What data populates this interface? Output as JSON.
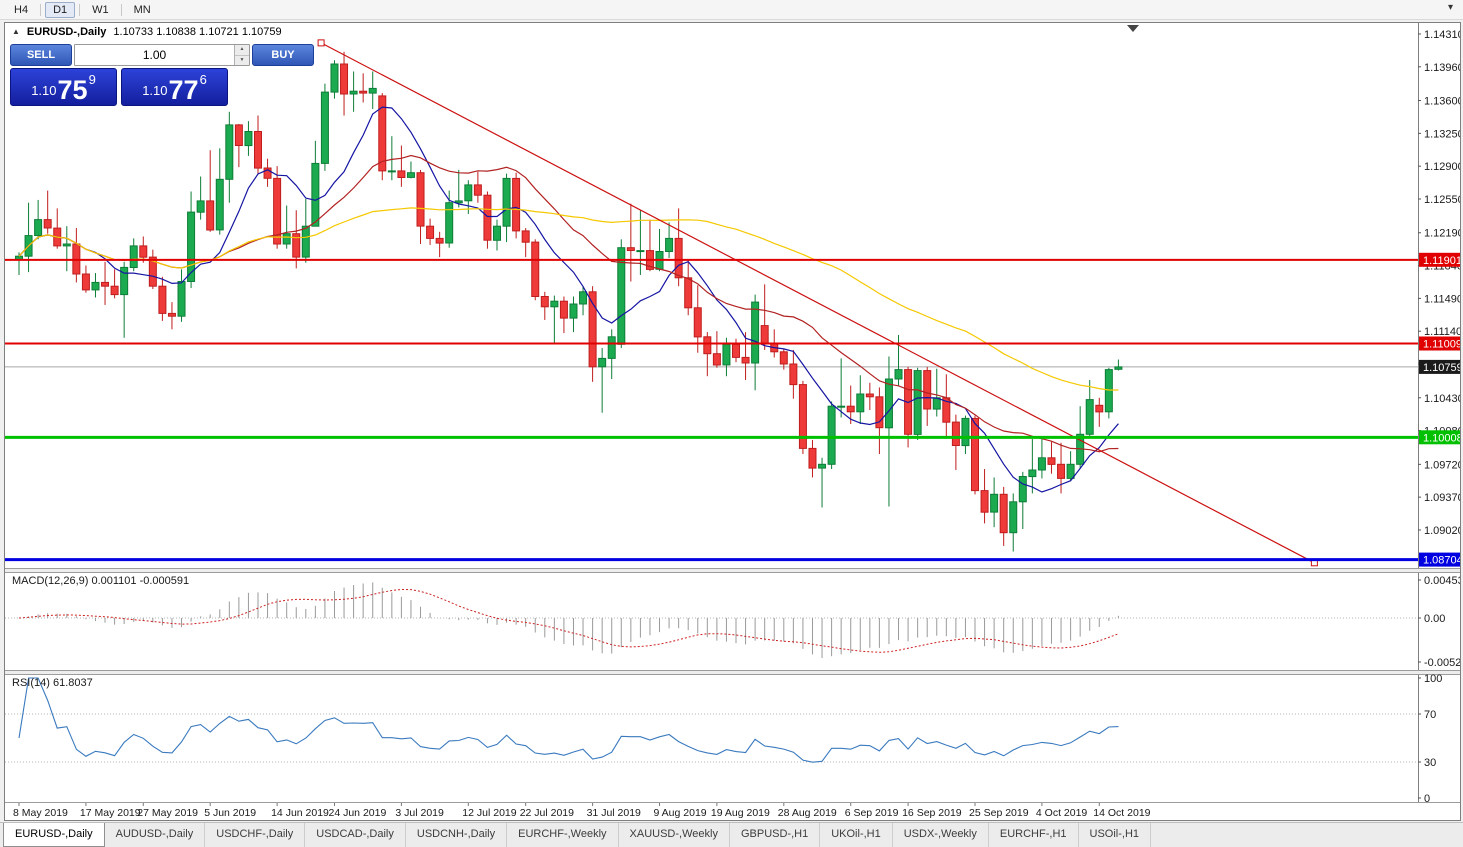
{
  "toolbar": {
    "items": [
      {
        "label": "H4",
        "active": false
      },
      {
        "label": "D1",
        "active": true
      },
      {
        "label": "W1",
        "active": false
      },
      {
        "label": "MN",
        "active": false
      }
    ],
    "overflow_icon": "▾"
  },
  "chart_header": {
    "expand_icon": "▲",
    "symbol": "EURUSD-,Daily",
    "ohlc": "1.10733 1.10838 1.10721 1.10759"
  },
  "one_click": {
    "sell_label": "SELL",
    "buy_label": "BUY",
    "volume": "1.00",
    "spinner_up_icon": "▲",
    "spinner_down_icon": "▼",
    "sell_price_small": "1.10",
    "sell_price_big": "75",
    "sell_price_sup": "9",
    "buy_price_small": "1.10",
    "buy_price_big": "77",
    "buy_price_sup": "6"
  },
  "chart_data": {
    "type": "candlestick",
    "symbol": "EURUSD",
    "timeframe": "Daily",
    "last_ohlc": {
      "open": "1.10733",
      "high": "1.10838",
      "low": "1.10721",
      "close": "1.10759"
    },
    "colors": {
      "bull": "#1caa50",
      "bull_edge": "#0d7d37",
      "bear": "#ef3a3a",
      "bear_edge": "#bf1d1d",
      "current_price_line": "#a8a8a8"
    },
    "candles": [
      [
        1.119,
        1.1198,
        1.1174,
        1.1194
      ],
      [
        1.1194,
        1.1251,
        1.1177,
        1.1216
      ],
      [
        1.1216,
        1.1254,
        1.1212,
        1.1233
      ],
      [
        1.1233,
        1.1264,
        1.1218,
        1.1224
      ],
      [
        1.1224,
        1.1245,
        1.1202,
        1.1205
      ],
      [
        1.1205,
        1.1226,
        1.1178,
        1.1207
      ],
      [
        1.1207,
        1.1224,
        1.1166,
        1.1175
      ],
      [
        1.1175,
        1.1184,
        1.1155,
        1.1158
      ],
      [
        1.1158,
        1.1176,
        1.115,
        1.1166
      ],
      [
        1.1166,
        1.1188,
        1.1142,
        1.1162
      ],
      [
        1.1162,
        1.118,
        1.1149,
        1.1153
      ],
      [
        1.1153,
        1.1188,
        1.1107,
        1.1182
      ],
      [
        1.1182,
        1.1213,
        1.1178,
        1.1205
      ],
      [
        1.1205,
        1.1215,
        1.1187,
        1.1193
      ],
      [
        1.1193,
        1.1201,
        1.1159,
        1.1162
      ],
      [
        1.1162,
        1.1172,
        1.1125,
        1.1133
      ],
      [
        1.1133,
        1.1145,
        1.1116,
        1.113
      ],
      [
        1.113,
        1.118,
        1.1124,
        1.1167
      ],
      [
        1.1167,
        1.1263,
        1.116,
        1.1241
      ],
      [
        1.1241,
        1.1279,
        1.1233,
        1.1253
      ],
      [
        1.1253,
        1.1307,
        1.122,
        1.1222
      ],
      [
        1.1222,
        1.1309,
        1.1217,
        1.1276
      ],
      [
        1.1276,
        1.1348,
        1.1251,
        1.1334
      ],
      [
        1.1334,
        1.1335,
        1.1289,
        1.1312
      ],
      [
        1.1312,
        1.1338,
        1.1301,
        1.1327
      ],
      [
        1.1327,
        1.1344,
        1.1282,
        1.1288
      ],
      [
        1.1288,
        1.1298,
        1.1268,
        1.1277
      ],
      [
        1.1277,
        1.129,
        1.1202,
        1.1207
      ],
      [
        1.1207,
        1.1248,
        1.1202,
        1.1218
      ],
      [
        1.1218,
        1.1243,
        1.1181,
        1.1193
      ],
      [
        1.1193,
        1.1255,
        1.1187,
        1.1226
      ],
      [
        1.1226,
        1.1317,
        1.1226,
        1.1293
      ],
      [
        1.1293,
        1.1378,
        1.1285,
        1.1369
      ],
      [
        1.1369,
        1.1403,
        1.1362,
        1.1399
      ],
      [
        1.1399,
        1.1412,
        1.1344,
        1.1367
      ],
      [
        1.1367,
        1.1391,
        1.1348,
        1.137
      ],
      [
        1.137,
        1.1389,
        1.1358,
        1.1368
      ],
      [
        1.1368,
        1.1391,
        1.1351,
        1.1373
      ],
      [
        1.1365,
        1.1368,
        1.1275,
        1.1285
      ],
      [
        1.1285,
        1.1322,
        1.1275,
        1.1285
      ],
      [
        1.1285,
        1.1312,
        1.1268,
        1.1278
      ],
      [
        1.1278,
        1.1295,
        1.1277,
        1.1283
      ],
      [
        1.1283,
        1.1286,
        1.1207,
        1.1226
      ],
      [
        1.1226,
        1.1234,
        1.1206,
        1.1213
      ],
      [
        1.1213,
        1.122,
        1.1193,
        1.1208
      ],
      [
        1.1208,
        1.1264,
        1.1203,
        1.1251
      ],
      [
        1.1251,
        1.1286,
        1.1246,
        1.1253
      ],
      [
        1.1253,
        1.1275,
        1.1239,
        1.127
      ],
      [
        1.127,
        1.1284,
        1.1251,
        1.1259
      ],
      [
        1.1259,
        1.1263,
        1.1202,
        1.1211
      ],
      [
        1.1211,
        1.1233,
        1.12,
        1.1226
      ],
      [
        1.1226,
        1.1282,
        1.1209,
        1.1277
      ],
      [
        1.1277,
        1.1283,
        1.1213,
        1.1221
      ],
      [
        1.1221,
        1.1224,
        1.1193,
        1.1209
      ],
      [
        1.1209,
        1.1212,
        1.1147,
        1.1151
      ],
      [
        1.1151,
        1.1156,
        1.1126,
        1.114
      ],
      [
        1.114,
        1.1152,
        1.1101,
        1.1146
      ],
      [
        1.1146,
        1.1151,
        1.1112,
        1.1128
      ],
      [
        1.1128,
        1.1151,
        1.1113,
        1.1143
      ],
      [
        1.1143,
        1.1162,
        1.1131,
        1.1156
      ],
      [
        1.1156,
        1.1162,
        1.106,
        1.1076
      ],
      [
        1.1076,
        1.1096,
        1.1027,
        1.1085
      ],
      [
        1.1085,
        1.1116,
        1.1063,
        1.1108
      ],
      [
        1.11,
        1.1212,
        1.1096,
        1.1203
      ],
      [
        1.1203,
        1.125,
        1.1167,
        1.12
      ],
      [
        1.12,
        1.1243,
        1.1174,
        1.12
      ],
      [
        1.12,
        1.1233,
        1.1178,
        1.118
      ],
      [
        1.118,
        1.1223,
        1.1178,
        1.1199
      ],
      [
        1.1199,
        1.123,
        1.1192,
        1.1213
      ],
      [
        1.1213,
        1.1245,
        1.1162,
        1.1171
      ],
      [
        1.1171,
        1.119,
        1.1131,
        1.1139
      ],
      [
        1.1139,
        1.1163,
        1.1091,
        1.1108
      ],
      [
        1.1108,
        1.1113,
        1.1066,
        1.109
      ],
      [
        1.109,
        1.1114,
        1.1075,
        1.1078
      ],
      [
        1.1078,
        1.1107,
        1.1066,
        1.11
      ],
      [
        1.11,
        1.1106,
        1.1081,
        1.1086
      ],
      [
        1.1086,
        1.1113,
        1.1062,
        1.108
      ],
      [
        1.108,
        1.1153,
        1.1051,
        1.1145
      ],
      [
        1.112,
        1.1164,
        1.1094,
        1.1101
      ],
      [
        1.1101,
        1.1116,
        1.1086,
        1.1092
      ],
      [
        1.1092,
        1.1095,
        1.1073,
        1.1079
      ],
      [
        1.1079,
        1.1094,
        1.1042,
        1.1057
      ],
      [
        1.1057,
        1.1061,
        1.0983,
        1.0989
      ],
      [
        1.0989,
        1.0998,
        1.0958,
        1.0968
      ],
      [
        1.0968,
        1.0979,
        1.0926,
        1.0972
      ],
      [
        1.0972,
        1.1039,
        1.0967,
        1.1034
      ],
      [
        1.1034,
        1.1085,
        1.1022,
        1.1034
      ],
      [
        1.1034,
        1.1056,
        1.1015,
        1.1028
      ],
      [
        1.1028,
        1.1067,
        1.1015,
        1.1047
      ],
      [
        1.1047,
        1.1059,
        1.103,
        1.1044
      ],
      [
        1.1044,
        1.1054,
        1.0983,
        1.1011
      ],
      [
        1.1011,
        1.1087,
        1.0927,
        1.1063
      ],
      [
        1.1063,
        1.111,
        1.1055,
        1.1073
      ],
      [
        1.1073,
        1.1076,
        1.099,
        1.1004
      ],
      [
        1.1004,
        1.1075,
        1.0998,
        1.1072
      ],
      [
        1.1072,
        1.1076,
        1.1013,
        1.1031
      ],
      [
        1.1031,
        1.1074,
        1.1023,
        1.1043
      ],
      [
        1.1043,
        1.1068,
        1.1,
        1.1017
      ],
      [
        1.1017,
        1.1025,
        1.0966,
        1.0992
      ],
      [
        1.0992,
        1.1024,
        1.0983,
        1.1021
      ],
      [
        1.1021,
        1.1024,
        1.094,
        1.0944
      ],
      [
        1.0944,
        1.0967,
        1.0909,
        1.0921
      ],
      [
        1.0921,
        1.0958,
        1.0905,
        1.094
      ],
      [
        1.094,
        1.0948,
        1.0885,
        1.0899
      ],
      [
        1.0899,
        1.0941,
        1.0879,
        1.0932
      ],
      [
        1.0932,
        1.0964,
        1.0903,
        1.0959
      ],
      [
        1.0959,
        1.0999,
        1.0941,
        1.0966
      ],
      [
        1.0966,
        1.0999,
        1.0957,
        1.0979
      ],
      [
        1.0979,
        1.0996,
        1.0962,
        1.0972
      ],
      [
        1.0972,
        1.0995,
        1.0941,
        1.0957
      ],
      [
        1.0957,
        1.0986,
        1.0955,
        1.0972
      ],
      [
        1.0972,
        1.1034,
        1.0967,
        1.1004
      ],
      [
        1.1004,
        1.1062,
        1.1002,
        1.1041
      ],
      [
        1.1035,
        1.1043,
        1.1012,
        1.1028
      ],
      [
        1.1028,
        1.1075,
        1.1021,
        1.1073
      ],
      [
        1.10733,
        1.10838,
        1.10721,
        1.10759
      ]
    ],
    "x_labels": [
      {
        "index": 0,
        "text": "8 May 2019"
      },
      {
        "index": 7,
        "text": "17 May 2019"
      },
      {
        "index": 13,
        "text": "27 May 2019"
      },
      {
        "index": 20,
        "text": "5 Jun 2019"
      },
      {
        "index": 27,
        "text": "14 Jun 2019"
      },
      {
        "index": 33,
        "text": "24 Jun 2019"
      },
      {
        "index": 40,
        "text": "3 Jul 2019"
      },
      {
        "index": 47,
        "text": "12 Jul 2019"
      },
      {
        "index": 53,
        "text": "22 Jul 2019"
      },
      {
        "index": 60,
        "text": "31 Jul 2019"
      },
      {
        "index": 67,
        "text": "9 Aug 2019"
      },
      {
        "index": 73,
        "text": "19 Aug 2019"
      },
      {
        "index": 80,
        "text": "28 Aug 2019"
      },
      {
        "index": 87,
        "text": "6 Sep 2019"
      },
      {
        "index": 93,
        "text": "16 Sep 2019"
      },
      {
        "index": 100,
        "text": "25 Sep 2019"
      },
      {
        "index": 107,
        "text": "4 Oct 2019"
      },
      {
        "index": 113,
        "text": "14 Oct 2019"
      }
    ],
    "y_axis_ticks": [
      "1.14310",
      "1.13960",
      "1.13600",
      "1.13250",
      "1.12900",
      "1.12550",
      "1.12190",
      "1.11840",
      "1.11490",
      "1.11140",
      "1.10790",
      "1.10430",
      "1.10080",
      "1.09720",
      "1.09370",
      "1.09020"
    ],
    "h_lines": [
      {
        "price": 1.11901,
        "label": "1.11901",
        "color": "#e00000",
        "width": 2
      },
      {
        "price": 1.11009,
        "label": "1.11009",
        "color": "#e00000",
        "width": 2
      },
      {
        "price": 1.10008,
        "label": "1.10008",
        "color": "#00c000",
        "width": 3
      },
      {
        "price": 1.08704,
        "label": "1.08704",
        "color": "#0000e0",
        "width": 3
      }
    ],
    "current_price": {
      "value": 1.10759,
      "label": "1.10759",
      "tag_color": "#1a1a1a"
    },
    "trendline": {
      "i1": 31.6,
      "p1": 1.14215,
      "i2": 135.5,
      "p2": 1.0867,
      "color": "#cc1111"
    },
    "moving_averages": [
      {
        "period": 8,
        "color": "#1515a3"
      },
      {
        "period": 21,
        "color": "#b22222"
      },
      {
        "period": 55,
        "color": "#f5c800"
      }
    ],
    "macd": {
      "label": "MACD(12,26,9) 0.001101 -0.000591",
      "fast": 12,
      "slow": 26,
      "signal": 9,
      "axis_labels": [
        "0.004536",
        "0.00",
        "-0.005205"
      ],
      "histogram_color": "#9a9a9a",
      "signal_color": "#cc2222"
    },
    "rsi": {
      "label": "RSI(14) 61.8037",
      "period": 14,
      "levels": [
        100,
        70,
        30,
        0
      ],
      "line_color": "#3a7abf"
    }
  },
  "tabs": [
    {
      "label": "EURUSD-,Daily",
      "active": true
    },
    {
      "label": "AUDUSD-,Daily",
      "active": false
    },
    {
      "label": "USDCHF-,Daily",
      "active": false
    },
    {
      "label": "USDCAD-,Daily",
      "active": false
    },
    {
      "label": "USDCNH-,Daily",
      "active": false
    },
    {
      "label": "EURCHF-,Weekly",
      "active": false
    },
    {
      "label": "XAUUSD-,Weekly",
      "active": false
    },
    {
      "label": "GBPUSD-,H1",
      "active": false
    },
    {
      "label": "UKOil-,H1",
      "active": false
    },
    {
      "label": "USDX-,Weekly",
      "active": false
    },
    {
      "label": "EURCHF-,H1",
      "active": false
    },
    {
      "label": "USOil-,H1",
      "active": false
    }
  ]
}
